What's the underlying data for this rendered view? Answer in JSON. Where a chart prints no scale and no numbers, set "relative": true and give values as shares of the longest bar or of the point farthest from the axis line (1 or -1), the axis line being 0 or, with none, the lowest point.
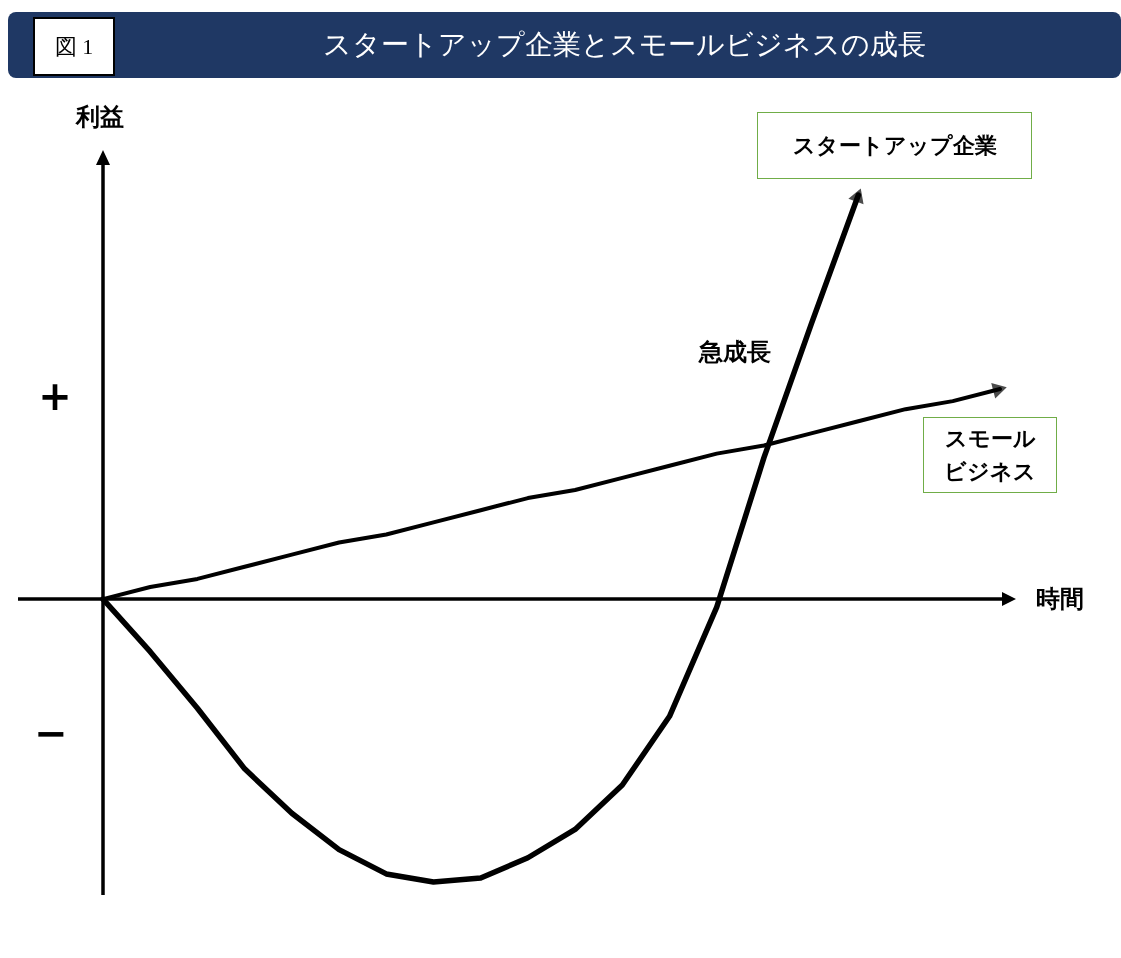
{
  "chart_data": {
    "type": "line",
    "title": "スタートアップ企業とスモールビジネスの成長",
    "xlabel": "時間",
    "ylabel": "利益",
    "relative": true,
    "marker": "none",
    "line_style": "solid",
    "annotations": [
      "図 1",
      "+",
      "−",
      "急成長"
    ],
    "categories": [
      null,
      null,
      null,
      null,
      null,
      null,
      null,
      null,
      null,
      null,
      null,
      null,
      null,
      null,
      null,
      null,
      null,
      null,
      null,
      null
    ],
    "series": [
      {
        "name": "スタートアップ企業",
        "color": "#000000",
        "values": [
          0,
          -0.13,
          -0.27,
          -0.42,
          -0.53,
          -0.62,
          -0.68,
          -0.7,
          -0.69,
          -0.64,
          -0.57,
          -0.46,
          -0.29,
          -0.02,
          0.35,
          0.68,
          1,
          null,
          null,
          null
        ]
      },
      {
        "name": "スモールビジネス",
        "color": "#000000",
        "values": [
          0,
          0.03,
          0.05,
          0.08,
          0.11,
          0.14,
          0.16,
          0.19,
          0.22,
          0.25,
          0.27,
          0.3,
          0.33,
          0.36,
          0.38,
          0.41,
          0.44,
          0.47,
          0.49,
          0.52
        ]
      }
    ]
  }
}
